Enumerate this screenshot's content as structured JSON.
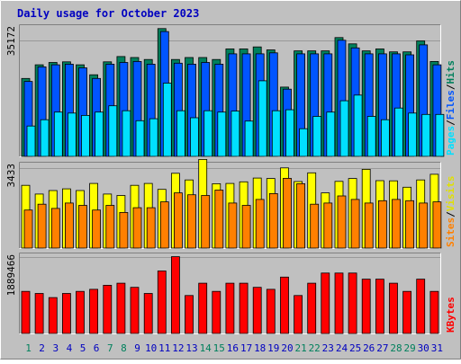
{
  "chart_data": {
    "type": "bar",
    "title": "Daily usage for October 2023",
    "categories": [
      "1",
      "2",
      "3",
      "4",
      "5",
      "6",
      "7",
      "8",
      "9",
      "10",
      "11",
      "12",
      "13",
      "14",
      "15",
      "16",
      "17",
      "18",
      "19",
      "20",
      "21",
      "22",
      "23",
      "24",
      "25",
      "26",
      "27",
      "28",
      "29",
      "30",
      "31"
    ],
    "weekend_days": [
      "1",
      "7",
      "8",
      "14",
      "15",
      "21",
      "22",
      "28",
      "29"
    ],
    "grid": true,
    "legend_position": "right",
    "panels": [
      {
        "name": "top",
        "ylim": [
          0,
          40000
        ],
        "y_tick_label": "35172",
        "y_tick_value": 35172,
        "right_labels": [
          {
            "text": "Pages",
            "color": "#00e0ff"
          },
          {
            "text": "/",
            "color": "#000000"
          },
          {
            "text": "Files",
            "color": "#0055ff"
          },
          {
            "text": "/",
            "color": "#000000"
          },
          {
            "text": "Hits",
            "color": "#00805c"
          }
        ],
        "series": [
          {
            "name": "Hits",
            "color": "#00805c",
            "values": [
              23700,
              27800,
              28500,
              28700,
              27800,
              24800,
              28700,
              30300,
              30000,
              29400,
              38700,
              29400,
              30000,
              30000,
              29400,
              32600,
              32600,
              33200,
              32300,
              21100,
              32000,
              32000,
              32000,
              36000,
              34100,
              32000,
              32600,
              31700,
              31700,
              35000,
              28800
            ]
          },
          {
            "name": "Files",
            "color": "#0055ff",
            "values": [
              22800,
              27200,
              27800,
              28000,
              26900,
              23700,
              28000,
              28500,
              28800,
              28000,
              37800,
              28300,
              28000,
              28500,
              28000,
              31100,
              31100,
              31100,
              31400,
              20500,
              31100,
              31100,
              31100,
              35200,
              32900,
              31100,
              31100,
              31100,
              30800,
              33800,
              27800
            ]
          },
          {
            "name": "Pages",
            "color": "#00e0ff",
            "values": [
              9400,
              11300,
              13600,
              13300,
              12600,
              13600,
              15500,
              14000,
              11000,
              11600,
              22300,
              14000,
              11900,
              14000,
              13600,
              13900,
              10900,
              23000,
              14000,
              14300,
              8600,
              12300,
              13600,
              17000,
              18700,
              12300,
              11300,
              14800,
              13300,
              12900,
              12900
            ]
          }
        ]
      },
      {
        "name": "middle",
        "ylim": [
          0,
          3700
        ],
        "y_tick_label": "3433",
        "y_tick_value": 3433,
        "right_labels": [
          {
            "text": "Sites",
            "color": "#ff8000"
          },
          {
            "text": "/",
            "color": "#000000"
          },
          {
            "text": "Visits",
            "color": "#e0e000"
          }
        ],
        "series": [
          {
            "name": "Visits",
            "color": "#ffff00",
            "values": [
              2700,
              2330,
              2480,
              2550,
              2480,
              2780,
              2330,
              2270,
              2700,
              2780,
              2530,
              3210,
              2930,
              3800,
              2770,
              2780,
              2850,
              3010,
              2990,
              3440,
              2860,
              3230,
              2380,
              2870,
              2990,
              3380,
              2900,
              2890,
              2620,
              2930,
              3170
            ]
          },
          {
            "name": "Sites",
            "color": "#ff8000",
            "values": [
              1650,
              1900,
              1720,
              1950,
              1850,
              1650,
              1850,
              1550,
              1750,
              1750,
              2000,
              2380,
              2300,
              2270,
              2500,
              1950,
              1850,
              2100,
              2350,
              3000,
              2770,
              1900,
              1950,
              2250,
              2100,
              1950,
              2050,
              2100,
              2050,
              1950,
              2000
            ]
          }
        ]
      },
      {
        "name": "bottom",
        "ylim": [
          0,
          2000000
        ],
        "y_tick_label": "1889466",
        "y_tick_value": 1889466,
        "right_labels": [
          {
            "text": "KBytes",
            "color": "#ff0000"
          }
        ],
        "series": [
          {
            "name": "KBytes",
            "color": "#ff0000",
            "values": [
              1050000,
              1000000,
              900000,
              1000000,
              1050000,
              1100000,
              1200000,
              1250000,
              1150000,
              1000000,
              1550000,
              1900000,
              950000,
              1250000,
              1050000,
              1250000,
              1250000,
              1150000,
              1100000,
              1400000,
              950000,
              1250000,
              1500000,
              1500000,
              1500000,
              1350000,
              1350000,
              1250000,
              1050000,
              1350000,
              1050000
            ]
          }
        ]
      }
    ]
  },
  "colors": {
    "background": "#c0c0c0",
    "grid": "#999999",
    "title": "#0000c0",
    "weekday_label": "#0000c0",
    "weekend_label": "#00805c"
  }
}
